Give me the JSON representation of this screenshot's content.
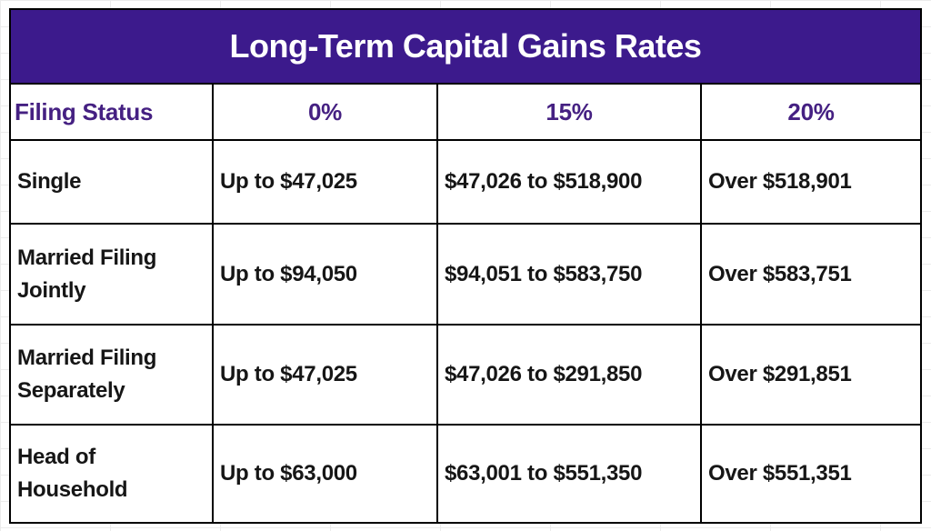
{
  "theme": {
    "banner-bg": "#3C1A8C",
    "banner-text": "#FFFFFF",
    "header-text": "#452082",
    "body-text": "#161616",
    "border": "#000000",
    "grid-line": "#ececec",
    "page-bg": "#FFFFFF"
  },
  "table": {
    "title": "Long-Term Capital Gains Rates",
    "columns": [
      "Filing Status",
      "0%",
      "15%",
      "20%"
    ],
    "rows": [
      [
        "Single",
        "Up to $47,025",
        "$47,026 to $518,900",
        "Over $518,901"
      ],
      [
        "Married Filing Jointly",
        "Up to $94,050",
        "$94,051 to $583,750",
        "Over $583,751"
      ],
      [
        "Married Filing Separately",
        "Up to $47,025",
        "$47,026 to $291,850",
        "Over $291,851"
      ],
      [
        "Head of Household",
        "Up to $63,000",
        "$63,001 to $551,350",
        "Over $551,351"
      ]
    ]
  },
  "chart_data": {
    "type": "table",
    "title": "Long-Term Capital Gains Rates",
    "columns": [
      "Filing Status",
      "0%",
      "15%",
      "20%"
    ],
    "rows": [
      {
        "filing_status": "Single",
        "rate_0pct": "Up to $47,025",
        "rate_15pct": "$47,026 to $518,900",
        "rate_20pct": "Over $518,901"
      },
      {
        "filing_status": "Married Filing Jointly",
        "rate_0pct": "Up to $94,050",
        "rate_15pct": "$94,051 to $583,750",
        "rate_20pct": "Over $583,751"
      },
      {
        "filing_status": "Married Filing Separately",
        "rate_0pct": "Up to $47,025",
        "rate_15pct": "$47,026 to $291,850",
        "rate_20pct": "Over $291,851"
      },
      {
        "filing_status": "Head of Household",
        "rate_0pct": "Up to $63,000",
        "rate_15pct": "$63,001 to $551,350",
        "rate_20pct": "Over $551,351"
      }
    ],
    "numeric_thresholds": {
      "Single": [
        47025,
        518900
      ],
      "Married Filing Jointly": [
        94050,
        583750
      ],
      "Married Filing Separately": [
        47025,
        291850
      ],
      "Head of Household": [
        63000,
        551350
      ]
    }
  }
}
